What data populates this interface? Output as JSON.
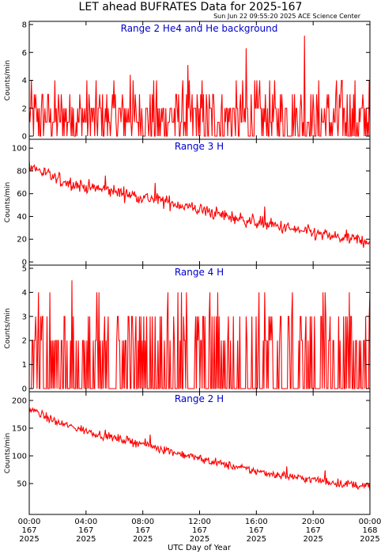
{
  "title": "LET ahead BUFRATES Data for 2025-167",
  "timestamp": "Sun Jun 22 09:55:20 2025 ACE Science Center",
  "xlabel": "UTC Day of Year",
  "x_ticks": [
    {
      "time": "00:00",
      "day": "167",
      "year": "2025"
    },
    {
      "time": "04:00",
      "day": "167",
      "year": "2025"
    },
    {
      "time": "08:00",
      "day": "167",
      "year": "2025"
    },
    {
      "time": "12:00",
      "day": "167",
      "year": "2025"
    },
    {
      "time": "16:00",
      "day": "167",
      "year": "2025"
    },
    {
      "time": "20:00",
      "day": "167",
      "year": "2025"
    },
    {
      "time": "00:00",
      "day": "168",
      "year": "2025"
    }
  ],
  "colors": {
    "series": "#ff0000",
    "panel_title": "#0000cc",
    "axes": "#000000"
  },
  "chart_data": [
    {
      "type": "line",
      "title": "Range 2 He4 and He background",
      "ylabel": "Counts/min",
      "ylim": [
        0,
        8
      ],
      "yticks": [
        0,
        2,
        4,
        6,
        8
      ],
      "xlim": [
        0,
        24
      ],
      "series": [
        {
          "values_description_removed": true,
          "sample_minutes": 1,
          "model": {
            "kind": "poisson-like",
            "level_start": 1.3,
            "level_end": 0.9,
            "max": 8,
            "spikes": [
              2.1,
              4.4,
              5.1,
              6.3,
              7.2
            ]
          }
        }
      ]
    },
    {
      "type": "line",
      "title": "Range 3 H",
      "ylabel": "Counts/min",
      "ylim": [
        0,
        105
      ],
      "yticks": [
        0,
        20,
        40,
        60,
        80,
        100
      ],
      "xlim": [
        0,
        24
      ],
      "series": [
        {
          "sample_minutes": 1,
          "model": {
            "kind": "trend",
            "points": [
              [
                0,
                85
              ],
              [
                2,
                72
              ],
              [
                4,
                66
              ],
              [
                6,
                62
              ],
              [
                8,
                57
              ],
              [
                10,
                52
              ],
              [
                12,
                46
              ],
              [
                14,
                40
              ],
              [
                16,
                35
              ],
              [
                18,
                30
              ],
              [
                20,
                25
              ],
              [
                22,
                21
              ],
              [
                24,
                18
              ]
            ],
            "noise": 7
          }
        }
      ]
    },
    {
      "type": "line",
      "title": "Range 4 H",
      "ylabel": "Counts/min",
      "ylim": [
        0,
        5
      ],
      "yticks": [
        0,
        1,
        2,
        3,
        4,
        5
      ],
      "xlim": [
        0,
        24
      ],
      "series": [
        {
          "sample_minutes": 1,
          "model": {
            "kind": "poisson-like",
            "level_start": 0.6,
            "level_end": 0.45,
            "max": 5,
            "spikes": [
              4.5
            ]
          }
        }
      ]
    },
    {
      "type": "line",
      "title": "Range 2 H",
      "ylabel": "Counts/min",
      "ylim": [
        0,
        210
      ],
      "yticks": [
        50,
        100,
        150,
        200
      ],
      "xlim": [
        0,
        24
      ],
      "series": [
        {
          "sample_minutes": 1,
          "model": {
            "kind": "trend",
            "points": [
              [
                0,
                185
              ],
              [
                2,
                160
              ],
              [
                4,
                145
              ],
              [
                6,
                132
              ],
              [
                8,
                122
              ],
              [
                10,
                108
              ],
              [
                12,
                95
              ],
              [
                14,
                83
              ],
              [
                16,
                72
              ],
              [
                18,
                64
              ],
              [
                20,
                57
              ],
              [
                22,
                50
              ],
              [
                24,
                45
              ]
            ],
            "noise": 9
          }
        }
      ]
    }
  ]
}
